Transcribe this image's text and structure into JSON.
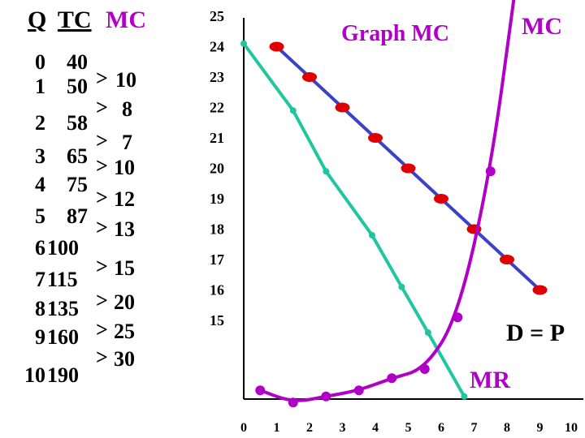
{
  "table": {
    "headers": [
      "Q",
      "TC",
      "MC"
    ],
    "q": [
      "0",
      "1",
      "2",
      "3",
      "4",
      "5",
      "6",
      "7",
      "8",
      "9",
      "10"
    ],
    "tc": [
      "40",
      "50",
      "58",
      "65",
      "75",
      "87",
      "100",
      "115",
      "135",
      "160",
      "190"
    ],
    "mc_arrow": ">",
    "mc": [
      "10",
      "8",
      "7",
      "10",
      "12",
      "13",
      "15",
      "20",
      "25",
      "30"
    ]
  },
  "chart_data": {
    "type": "line",
    "title": "Graph MC",
    "x_ticks": [
      "0",
      "1",
      "2",
      "3",
      "4",
      "5",
      "6",
      "7",
      "8",
      "9",
      "10"
    ],
    "y_ticks": [
      "25",
      "24",
      "23",
      "22",
      "21",
      "20",
      "19",
      "18",
      "17",
      "16",
      "15"
    ],
    "series": [
      {
        "name": "D = P",
        "color": "#3a43c4",
        "marker_color": "#e00000",
        "points": [
          [
            1,
            24
          ],
          [
            2,
            23
          ],
          [
            3,
            22
          ],
          [
            4,
            21
          ],
          [
            5,
            20
          ],
          [
            6,
            19
          ],
          [
            7,
            18
          ],
          [
            8,
            17
          ],
          [
            9,
            16
          ]
        ]
      },
      {
        "name": "MR",
        "color": "#1fc6a0",
        "marker_color": "#1fc6a0",
        "points": [
          [
            0,
            24.1
          ],
          [
            1.5,
            21.9
          ],
          [
            2.5,
            19.9
          ],
          [
            3.9,
            17.8
          ],
          [
            4.8,
            16.1
          ],
          [
            5.6,
            14.6
          ],
          [
            6.7,
            12.5
          ]
        ]
      },
      {
        "name": "MC",
        "color": "#b000c8",
        "marker_color": "#b000c8",
        "points": [
          [
            0.5,
            12.7
          ],
          [
            1.5,
            12.3
          ],
          [
            2.5,
            12.5
          ],
          [
            3.5,
            12.7
          ],
          [
            4.5,
            13.1
          ],
          [
            5.5,
            13.4
          ],
          [
            6.5,
            15.1
          ],
          [
            7.5,
            19.9
          ],
          [
            8.25,
            25.9
          ]
        ]
      }
    ],
    "labels": {
      "mc": "MC",
      "dp": "D = P",
      "mr": "MR"
    }
  }
}
